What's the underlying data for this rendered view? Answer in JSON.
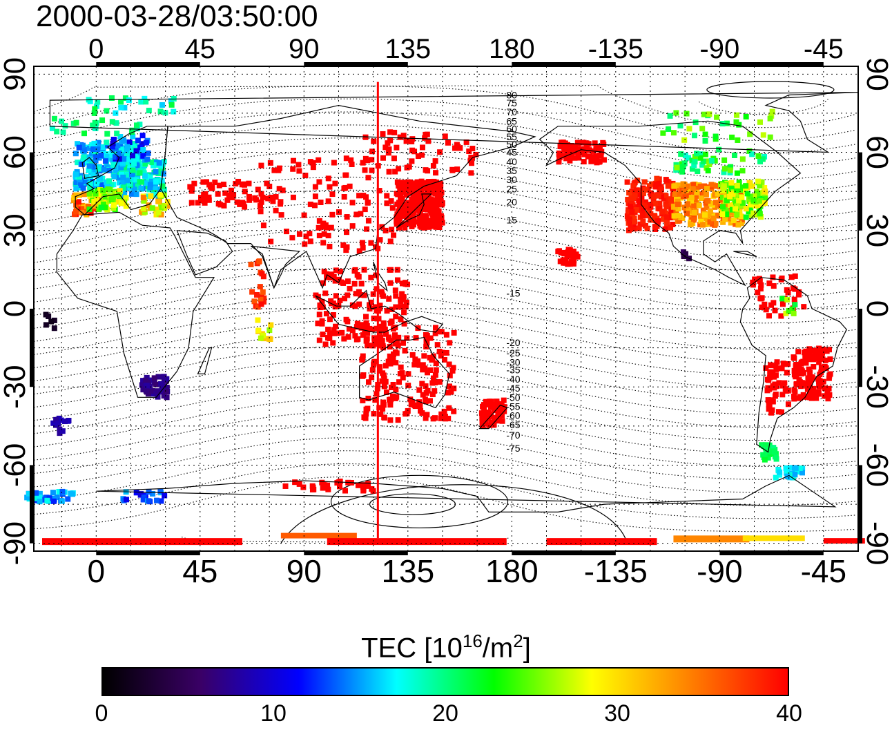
{
  "title": "2000-03-28/03:50:00",
  "map": {
    "projection": "equirectangular",
    "lon_center": 165,
    "lon_range": [
      -27,
      330
    ],
    "lat_range": [
      -93,
      93
    ],
    "top_lon_labels": [
      "0",
      "45",
      "90",
      "135",
      "180",
      "-135",
      "-90",
      "-45"
    ],
    "bottom_lon_labels": [
      "0",
      "45",
      "90",
      "135",
      "180",
      "-135",
      "-90",
      "-45"
    ],
    "left_lat_labels": [
      "90",
      "60",
      "30",
      "0",
      "-30",
      "-60",
      "-90"
    ],
    "right_lat_labels": [
      "90",
      "60",
      "30",
      "0",
      "-30",
      "-60",
      "-90"
    ],
    "magnetic_latitude_labels": [
      "80",
      "75",
      "70",
      "65",
      "60",
      "55",
      "50",
      "45",
      "40",
      "35",
      "30",
      "25",
      "20",
      "15",
      "-15",
      "-20",
      "-25",
      "-30",
      "-35",
      "-40",
      "-45",
      "-50",
      "-55",
      "-60",
      "-65",
      "-70",
      "-75"
    ],
    "marker_line_lon": 122,
    "marker_line_color": "#ff0000",
    "grid": true
  },
  "colorbar": {
    "label_main": "TEC  [10",
    "label_sup1": "16",
    "label_mid": "/m",
    "label_sup2": "2",
    "label_end": "]",
    "min": 0,
    "max": 40,
    "tick_labels": [
      "0",
      "10",
      "20",
      "30",
      "40"
    ],
    "colors": [
      "#000000",
      "#3a0066",
      "#0000ff",
      "#00ffff",
      "#00ff00",
      "#ffff00",
      "#ff8000",
      "#ff0000"
    ]
  }
}
